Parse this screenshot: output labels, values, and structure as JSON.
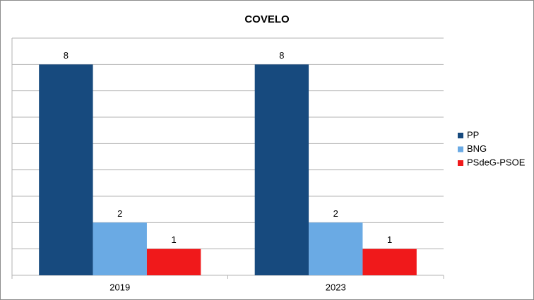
{
  "chart_data": {
    "type": "bar",
    "title": "COVELO",
    "categories": [
      "2019",
      "2023"
    ],
    "series": [
      {
        "name": "PP",
        "color": "#174a7e",
        "values": [
          8,
          8
        ]
      },
      {
        "name": "BNG",
        "color": "#6aaae4",
        "values": [
          2,
          2
        ]
      },
      {
        "name": "PSdeG-PSOE",
        "color": "#f0191b",
        "values": [
          1,
          1
        ]
      }
    ],
    "ylim": [
      0,
      9
    ],
    "yticks": [
      0,
      1,
      2,
      3,
      4,
      5,
      6,
      7,
      8,
      9
    ],
    "grid": true,
    "legend": "right"
  }
}
